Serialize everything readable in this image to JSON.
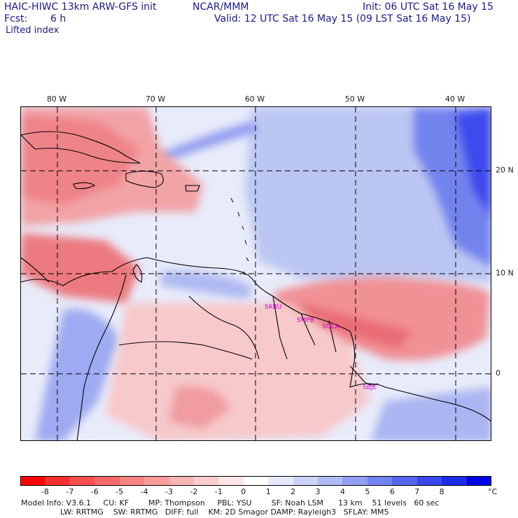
{
  "header": {
    "model": "HAIC-HIWC 13km ARW-GFS init",
    "org": "NCAR/MMM",
    "fcst_label": "Fcst:",
    "fcst_value": "6 h",
    "init": "Init: 06 UTC Sat 16 May 15",
    "valid": "Valid: 12 UTC Sat 16 May 15 (09 LST Sat 16 May 15)",
    "field": "Lifted index"
  },
  "map": {
    "lon_labels": [
      "80 W",
      "70 W",
      "60 W",
      "50 W",
      "40 W"
    ],
    "lat_labels": [
      "20 N",
      "10 N",
      "0"
    ],
    "cities": [
      "SKBU",
      "SMPB",
      "SOCA",
      "SBJE"
    ],
    "colors": {
      "strong_red": "#e83a44",
      "mid_red": "#f07a7f",
      "light_red": "#f9b8ba",
      "pale_red": "#fcdede",
      "neutral": "#f4f4fa",
      "pale_blue": "#d4dcf7",
      "light_blue": "#a8b8f1",
      "mid_blue": "#7f8ef0",
      "strong_blue": "#3c46ec",
      "coast": "#000000",
      "grid": "#000000"
    }
  },
  "colorbar": {
    "labels": [
      "-8",
      "-7",
      "-6",
      "-5",
      "-4",
      "-3",
      "-2",
      "-1",
      "0",
      "1",
      "2",
      "3",
      "4",
      "5",
      "6",
      "7",
      "8"
    ],
    "unit": "°C",
    "colors": [
      "#ff0000",
      "#fd3030",
      "#fc5050",
      "#fb6a6a",
      "#fa8484",
      "#f99c9c",
      "#f9b4b4",
      "#fbcdcd",
      "#fde6e6",
      "#ffffff",
      "#e6e9fb",
      "#ccd3f7",
      "#b0bbf5",
      "#939ff4",
      "#7582f1",
      "#5866ef",
      "#3a49ee",
      "#1b2cec",
      "#0000e6"
    ]
  },
  "footer": {
    "line1": "Model Info: V3.6.1     CU: KF        MP: Thompson     PBL: YSU        SF: Noah LSM      13 km    51 levels   60 sec",
    "line2": "                LW: RRTMG    SW: RRTMG   DIFF: full    KM: 2D Smagor DAMP: Rayleigh3   SFLAY: MM5"
  }
}
